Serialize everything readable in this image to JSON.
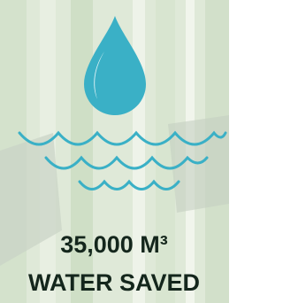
{
  "stat": {
    "value": "35,000 M³",
    "label": "WATER SAVED"
  }
}
